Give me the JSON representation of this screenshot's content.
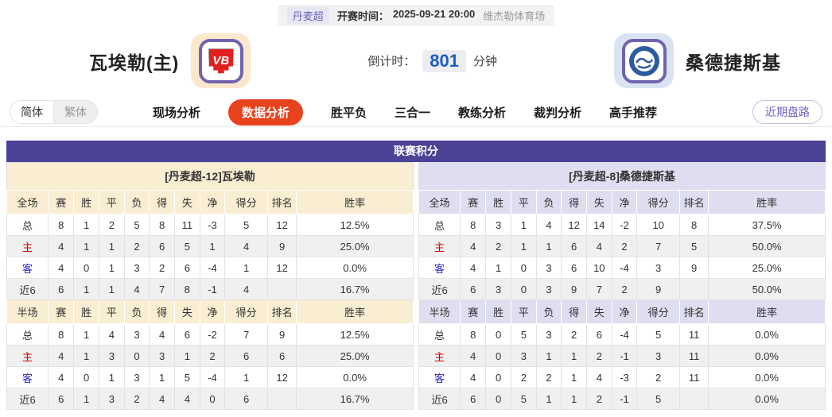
{
  "match_header": {
    "league": "丹麦超",
    "kickoff_label": "开赛时间：",
    "kickoff_time": "2025-09-21 20:00",
    "venue": "维杰勒体育场",
    "home_name": "瓦埃勒(主)",
    "home_logo_text": "VB",
    "away_name": "桑德捷斯基",
    "countdown_label": "倒计时：",
    "countdown_value": "801",
    "countdown_unit": "分钟"
  },
  "nav": {
    "lang_simplified": "简体",
    "lang_traditional": "繁体",
    "tabs": [
      {
        "label": "现场分析",
        "active": false
      },
      {
        "label": "数据分析",
        "active": true
      },
      {
        "label": "胜平负",
        "active": false
      },
      {
        "label": "三合一",
        "active": false
      },
      {
        "label": "教练分析",
        "active": false
      },
      {
        "label": "裁判分析",
        "active": false
      },
      {
        "label": "高手推荐",
        "active": false
      }
    ],
    "recent_button": "近期盘路"
  },
  "table": {
    "title": "联赛积分",
    "columns_full": [
      "全场",
      "赛",
      "胜",
      "平",
      "负",
      "得",
      "失",
      "净",
      "得分",
      "排名",
      "胜率"
    ],
    "columns_half": [
      "半场",
      "赛",
      "胜",
      "平",
      "负",
      "得",
      "失",
      "净",
      "得分",
      "排名",
      "胜率"
    ],
    "home": {
      "header": "[丹麦超-12]瓦埃勒",
      "full_rows": [
        [
          "总",
          "8",
          "1",
          "2",
          "5",
          "8",
          "11",
          "-3",
          "5",
          "12",
          "12.5%"
        ],
        [
          "主",
          "4",
          "1",
          "1",
          "2",
          "6",
          "5",
          "1",
          "4",
          "9",
          "25.0%"
        ],
        [
          "客",
          "4",
          "0",
          "1",
          "3",
          "2",
          "6",
          "-4",
          "1",
          "12",
          "0.0%"
        ],
        [
          "近6",
          "6",
          "1",
          "1",
          "4",
          "7",
          "8",
          "-1",
          "4",
          "",
          "16.7%"
        ]
      ],
      "half_rows": [
        [
          "总",
          "8",
          "1",
          "4",
          "3",
          "4",
          "6",
          "-2",
          "7",
          "9",
          "12.5%"
        ],
        [
          "主",
          "4",
          "1",
          "3",
          "0",
          "3",
          "1",
          "2",
          "6",
          "6",
          "25.0%"
        ],
        [
          "客",
          "4",
          "0",
          "1",
          "3",
          "1",
          "5",
          "-4",
          "1",
          "12",
          "0.0%"
        ],
        [
          "近6",
          "6",
          "1",
          "3",
          "2",
          "4",
          "4",
          "0",
          "6",
          "",
          "16.7%"
        ]
      ]
    },
    "away": {
      "header": "[丹麦超-8]桑德捷斯基",
      "full_rows": [
        [
          "总",
          "8",
          "3",
          "1",
          "4",
          "12",
          "14",
          "-2",
          "10",
          "8",
          "37.5%"
        ],
        [
          "主",
          "4",
          "2",
          "1",
          "1",
          "6",
          "4",
          "2",
          "7",
          "5",
          "50.0%"
        ],
        [
          "客",
          "4",
          "1",
          "0",
          "3",
          "6",
          "10",
          "-4",
          "3",
          "9",
          "25.0%"
        ],
        [
          "近6",
          "6",
          "3",
          "0",
          "3",
          "9",
          "7",
          "2",
          "9",
          "",
          "50.0%"
        ]
      ],
      "half_rows": [
        [
          "总",
          "8",
          "0",
          "5",
          "3",
          "2",
          "6",
          "-4",
          "5",
          "11",
          "0.0%"
        ],
        [
          "主",
          "4",
          "0",
          "3",
          "1",
          "1",
          "2",
          "-1",
          "3",
          "11",
          "0.0%"
        ],
        [
          "客",
          "4",
          "0",
          "2",
          "2",
          "1",
          "4",
          "-3",
          "2",
          "11",
          "0.0%"
        ],
        [
          "近6",
          "6",
          "0",
          "5",
          "1",
          "1",
          "2",
          "-1",
          "5",
          "",
          "0.0%"
        ]
      ]
    }
  },
  "colors": {
    "accent_purple": "#4C4296",
    "active_tab_orange": "#E8431D",
    "home_label_red": "#CC0000",
    "away_label_blue": "#2929CC",
    "home_panel_cream": "#F9EDD2",
    "away_panel_lavender": "#DEDEF0",
    "countdown_blue": "#1D5BC8",
    "home_crest_red": "#E21F1F",
    "away_crest_blue": "#2E5BA0"
  }
}
